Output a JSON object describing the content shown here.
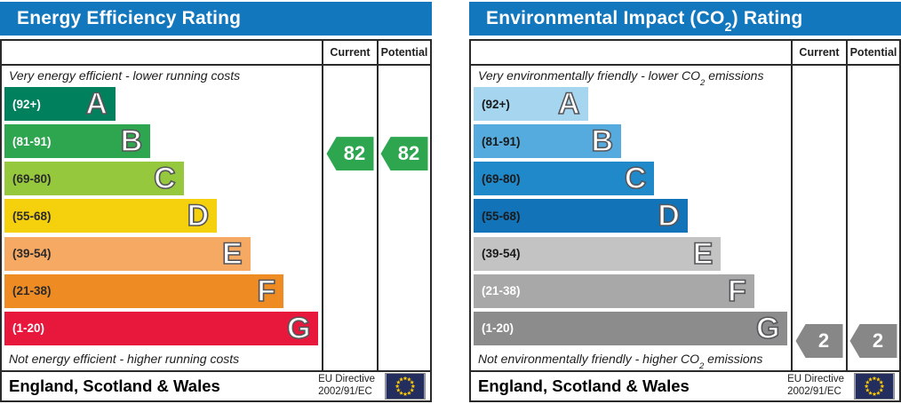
{
  "theme": {
    "header_bg": "#1377bd",
    "grid_line": "#2a2a2a",
    "badge_text": "#ffffff"
  },
  "eu_flag": {
    "background": "#232d5e",
    "star_color": "#ffcc00"
  },
  "charts": [
    {
      "id": "energy-efficiency",
      "title": {
        "pre": "Energy Efficiency Rating",
        "sub": "",
        "post": ""
      },
      "columns": [
        "Current",
        "Potential"
      ],
      "top_caption": {
        "pre": "Very energy efficient - lower running costs",
        "sub": "",
        "post": ""
      },
      "bottom_caption": {
        "pre": "Not energy efficient - higher running costs",
        "sub": "",
        "post": ""
      },
      "bands": [
        {
          "letter": "A",
          "range": "(92+)",
          "color": "#00805d",
          "range_color": "#ffffff",
          "width_pct": 35
        },
        {
          "letter": "B",
          "range": "(81-91)",
          "color": "#2ea64f",
          "range_color": "#ffffff",
          "width_pct": 46
        },
        {
          "letter": "C",
          "range": "(69-80)",
          "color": "#95c83d",
          "range_color": "#2b2b2b",
          "width_pct": 56.5
        },
        {
          "letter": "D",
          "range": "(55-68)",
          "color": "#f4d10c",
          "range_color": "#2b2b2b",
          "width_pct": 67
        },
        {
          "letter": "E",
          "range": "(39-54)",
          "color": "#f5a963",
          "range_color": "#2b2b2b",
          "width_pct": 77.5
        },
        {
          "letter": "F",
          "range": "(21-38)",
          "color": "#ee8b22",
          "range_color": "#2b2b2b",
          "width_pct": 88
        },
        {
          "letter": "G",
          "range": "(1-20)",
          "color": "#e8173c",
          "range_color": "#ffffff",
          "width_pct": 99
        }
      ],
      "current": {
        "value": "82",
        "band": "B",
        "color": "#2ea64f"
      },
      "potential": {
        "value": "82",
        "band": "B",
        "color": "#2ea64f"
      },
      "footer": {
        "region": "England, Scotland & Wales",
        "directive_line1": "EU Directive",
        "directive_line2": "2002/91/EC"
      }
    },
    {
      "id": "environmental-impact-co2",
      "title": {
        "pre": "Environmental Impact (CO",
        "sub": "2",
        "post": ") Rating"
      },
      "columns": [
        "Current",
        "Potential"
      ],
      "top_caption": {
        "pre": "Very environmentally friendly - lower CO",
        "sub": "2",
        "post": " emissions"
      },
      "bottom_caption": {
        "pre": "Not environmentally friendly - higher CO",
        "sub": "2",
        "post": " emissions"
      },
      "bands": [
        {
          "letter": "A",
          "range": "(92+)",
          "color": "#a6d5f0",
          "range_color": "#1a1a1a",
          "width_pct": 36
        },
        {
          "letter": "B",
          "range": "(81-91)",
          "color": "#55abde",
          "range_color": "#1a1a1a",
          "width_pct": 46.5
        },
        {
          "letter": "C",
          "range": "(69-80)",
          "color": "#2089ca",
          "range_color": "#1a1a1a",
          "width_pct": 57
        },
        {
          "letter": "D",
          "range": "(55-68)",
          "color": "#1273b9",
          "range_color": "#1a1a1a",
          "width_pct": 67.5
        },
        {
          "letter": "E",
          "range": "(39-54)",
          "color": "#c3c3c3",
          "range_color": "#1a1a1a",
          "width_pct": 78
        },
        {
          "letter": "F",
          "range": "(21-38)",
          "color": "#a8a8a8",
          "range_color": "#ffffff",
          "width_pct": 88.5
        },
        {
          "letter": "G",
          "range": "(1-20)",
          "color": "#8c8c8c",
          "range_color": "#ffffff",
          "width_pct": 99
        }
      ],
      "current": {
        "value": "2",
        "band": "G",
        "color": "#878787"
      },
      "potential": {
        "value": "2",
        "band": "G",
        "color": "#878787"
      },
      "footer": {
        "region": "England, Scotland & Wales",
        "directive_line1": "EU Directive",
        "directive_line2": "2002/91/EC"
      }
    }
  ],
  "chart_data": [
    {
      "type": "bar",
      "title": "Energy Efficiency Rating",
      "categories": [
        "A (92+)",
        "B (81-91)",
        "C (69-80)",
        "D (55-68)",
        "E (39-54)",
        "F (21-38)",
        "G (1-20)"
      ],
      "series": [
        {
          "name": "Current",
          "values": [
            82
          ]
        },
        {
          "name": "Potential",
          "values": [
            82
          ]
        }
      ],
      "current_band": "B",
      "potential_band": "B",
      "value_range": [
        1,
        100
      ],
      "annotations": [
        "Very energy efficient - lower running costs",
        "Not energy efficient - higher running costs"
      ],
      "footer": "England, Scotland & Wales | EU Directive 2002/91/EC"
    },
    {
      "type": "bar",
      "title": "Environmental Impact (CO2) Rating",
      "categories": [
        "A (92+)",
        "B (81-91)",
        "C (69-80)",
        "D (55-68)",
        "E (39-54)",
        "F (21-38)",
        "G (1-20)"
      ],
      "series": [
        {
          "name": "Current",
          "values": [
            2
          ]
        },
        {
          "name": "Potential",
          "values": [
            2
          ]
        }
      ],
      "current_band": "G",
      "potential_band": "G",
      "value_range": [
        1,
        100
      ],
      "annotations": [
        "Very environmentally friendly - lower CO2 emissions",
        "Not environmentally friendly - higher CO2 emissions"
      ],
      "footer": "England, Scotland & Wales | EU Directive 2002/91/EC"
    }
  ]
}
